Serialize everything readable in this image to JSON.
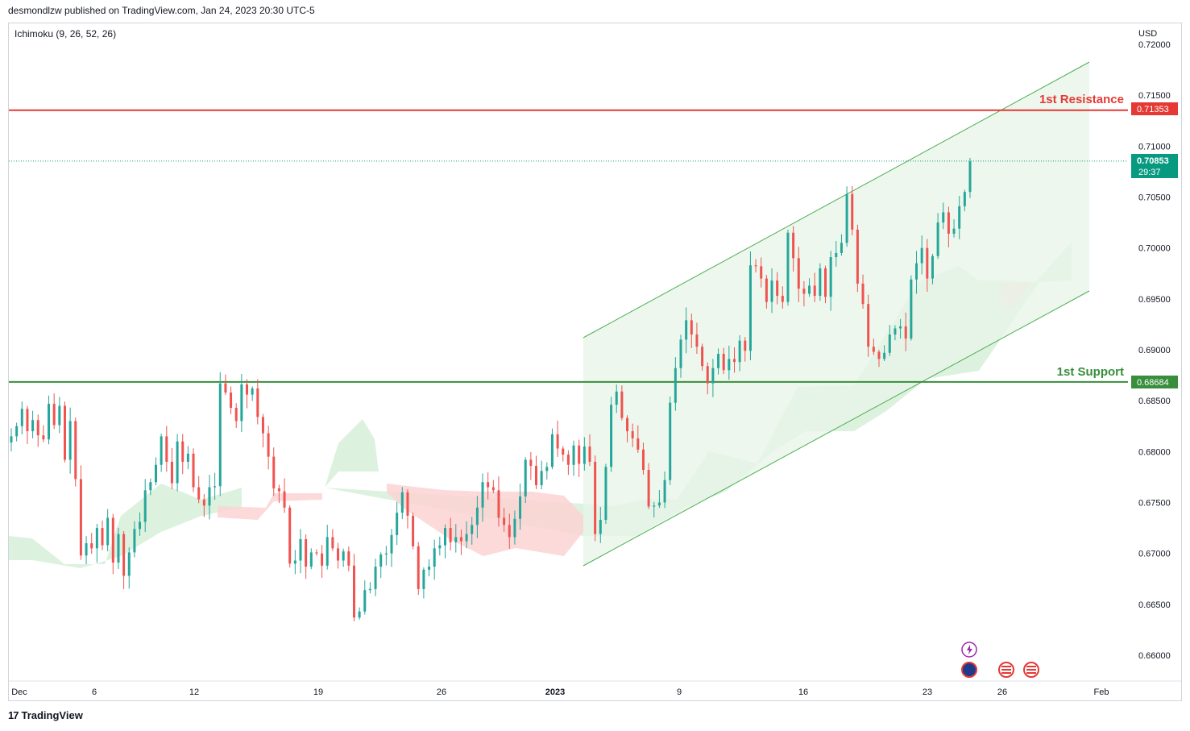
{
  "header": {
    "published_by": "desmondlzw published on TradingView.com, Jan 24, 2023 20:30 UTC-5"
  },
  "indicator": {
    "label": "Ichimoku (9, 26, 52, 26)"
  },
  "footer": {
    "brand": "TradingView",
    "logo": "17"
  },
  "colors": {
    "up": "#26a69a",
    "down": "#ef5350",
    "resistance": "#e53935",
    "support": "#388e3c",
    "channel_fill": "#e8f5e9",
    "channel_line": "#4caf50",
    "cloud_bull": "#c8e6c9",
    "cloud_bear": "#ffcdd2",
    "last_price_bg": "#089981"
  },
  "chart_data": {
    "type": "candlestick",
    "symbol_currency": "USD",
    "y_axis": {
      "range": [
        0.657,
        0.7235
      ],
      "ticks": [
        "0.72000",
        "0.71500",
        "0.71000",
        "0.70500",
        "0.70000",
        "0.69500",
        "0.69000",
        "0.68500",
        "0.68000",
        "0.67500",
        "0.67000",
        "0.66500",
        "0.66000"
      ]
    },
    "x_axis": {
      "ticks": [
        "Dec",
        "6",
        "12",
        "19",
        "26",
        "2023",
        "9",
        "16",
        "23",
        "26",
        "Feb"
      ]
    },
    "levels": [
      {
        "label": "1st Resistance",
        "value": 0.71353,
        "value_text": "0.71353"
      },
      {
        "label": "1st Support",
        "value": 0.68684,
        "value_text": "0.68684"
      }
    ],
    "last_price": {
      "value": 0.70853,
      "value_text": "0.70853",
      "countdown": "29:37"
    },
    "close_series": [
      0.6815,
      0.6825,
      0.6842,
      0.682,
      0.6831,
      0.6816,
      0.6812,
      0.6847,
      0.6826,
      0.6845,
      0.6792,
      0.683,
      0.6773,
      0.6698,
      0.671,
      0.6705,
      0.6725,
      0.6708,
      0.6735,
      0.6691,
      0.6719,
      0.6678,
      0.6701,
      0.6724,
      0.6731,
      0.6762,
      0.677,
      0.6787,
      0.6815,
      0.679,
      0.6769,
      0.681,
      0.679,
      0.6798,
      0.6765,
      0.6753,
      0.6747,
      0.6765,
      0.6766,
      0.6867,
      0.6858,
      0.6843,
      0.683,
      0.6866,
      0.6856,
      0.6862,
      0.6834,
      0.6818,
      0.6795,
      0.6764,
      0.6761,
      0.6745,
      0.669,
      0.6693,
      0.6714,
      0.6687,
      0.6701,
      0.67,
      0.6688,
      0.6716,
      0.6705,
      0.6693,
      0.6702,
      0.6688,
      0.6637,
      0.6643,
      0.6664,
      0.6665,
      0.6687,
      0.6699,
      0.67,
      0.6718,
      0.674,
      0.676,
      0.6737,
      0.6707,
      0.6665,
      0.6684,
      0.6687,
      0.6705,
      0.6708,
      0.6725,
      0.6711,
      0.6716,
      0.6712,
      0.6719,
      0.6728,
      0.6745,
      0.677,
      0.6765,
      0.6762,
      0.6735,
      0.6728,
      0.6716,
      0.6734,
      0.6756,
      0.6792,
      0.6786,
      0.6767,
      0.6781,
      0.6785,
      0.6817,
      0.6803,
      0.6797,
      0.6787,
      0.6806,
      0.6788,
      0.6805,
      0.679,
      0.6719,
      0.6733,
      0.6785,
      0.6846,
      0.6859,
      0.6833,
      0.682,
      0.6813,
      0.6802,
      0.6782,
      0.6746,
      0.6747,
      0.675,
      0.6772,
      0.6848,
      0.6882,
      0.691,
      0.6929,
      0.6915,
      0.6903,
      0.6884,
      0.6867,
      0.6882,
      0.6896,
      0.688,
      0.6891,
      0.6888,
      0.6909,
      0.6899,
      0.6983,
      0.6982,
      0.697,
      0.6947,
      0.6968,
      0.6953,
      0.6947,
      0.7015,
      0.699,
      0.696,
      0.6955,
      0.6963,
      0.6953,
      0.698,
      0.6952,
      0.6991,
      0.6995,
      0.7005,
      0.7053,
      0.7018,
      0.6965,
      0.6945,
      0.6903,
      0.6898,
      0.6891,
      0.6897,
      0.6915,
      0.6921,
      0.6923,
      0.6911,
      0.6969,
      0.6985,
      0.7,
      0.697,
      0.6992,
      0.7025,
      0.7035,
      0.7014,
      0.7019,
      0.7041,
      0.7055,
      0.7085
    ]
  }
}
